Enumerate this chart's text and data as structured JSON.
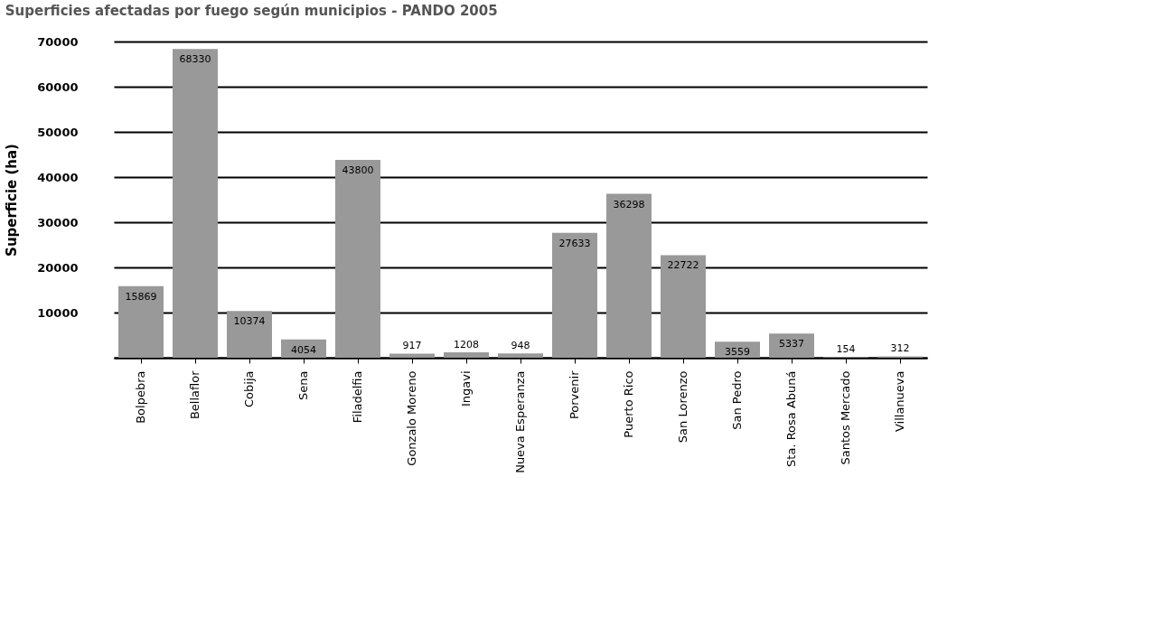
{
  "chart_data": {
    "type": "bar",
    "title": "Superficies afectadas por fuego según municipios -  PANDO 2005",
    "ylabel": "Superficie (ha)",
    "categories": [
      "Bolpebra",
      "Bellaflor",
      "Cobija",
      "Sena",
      "Filadelfia",
      "Gonzalo Moreno",
      "Ingavi",
      "Nueva Esperanza",
      "Porvenir",
      "Puerto Rico",
      "San Lorenzo",
      "San Pedro",
      "Sta. Rosa Abuná",
      "Santos Mercado",
      "Villanueva"
    ],
    "values": [
      15869,
      68330,
      10374,
      4054,
      43800,
      917,
      1208,
      948,
      27633,
      36298,
      22722,
      3559,
      5337,
      154,
      312
    ],
    "color": "#999999",
    "data_labels": true,
    "grid": "y",
    "ylim": [
      0,
      70000
    ],
    "yticks": [
      {
        "value": 0,
        "label": null
      },
      10000,
      20000,
      30000,
      40000,
      50000,
      60000,
      70000
    ]
  }
}
